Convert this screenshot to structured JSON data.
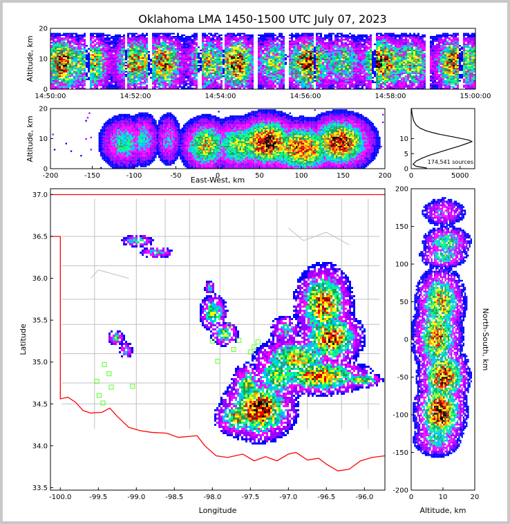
{
  "title": "Oklahoma LMA 1450-1500 UTC July 07, 2023",
  "colors": {
    "density_scale": [
      "#0000ff",
      "#9d00ff",
      "#ff00ff",
      "#00bfff",
      "#00ff80",
      "#1ea050",
      "#ffff00",
      "#ffa000",
      "#ff0000",
      "#a00000",
      "#000000"
    ],
    "state_border": "#ff0000",
    "county_lines": "#c0c0c0",
    "sensor_markers": "#66ff33"
  },
  "chart_data": [
    {
      "id": "time-height",
      "type": "heatmap",
      "ylabel": "Altitude, km",
      "ylim": [
        0,
        20
      ],
      "yticks": [
        0,
        10,
        20
      ],
      "xlim_seconds_after_1450": [
        0,
        600
      ],
      "xticks": [
        "14:50:00",
        "14:52:00",
        "14:54:00",
        "14:56:00",
        "14:58:00",
        "15:00:00"
      ],
      "core_altitude_km": [
        7,
        11
      ],
      "lightning_gaps_seconds_after_1450": [
        52,
        105,
        138,
        210,
        243,
        288,
        332,
        372,
        455,
        532,
        578
      ]
    },
    {
      "id": "ew-altitude",
      "type": "heatmap",
      "xlabel": "East-West, km",
      "ylabel": "Altitude, km",
      "xlim": [
        -200,
        200
      ],
      "ylim": [
        0,
        20
      ],
      "xticks": [
        -200,
        -150,
        -100,
        -50,
        0,
        50,
        100,
        150,
        200
      ],
      "yticks": [
        0,
        10,
        20
      ],
      "clusters": [
        {
          "x_center": -113,
          "x_halfwidth": 15,
          "alt_center": 9,
          "intensity": 0.45
        },
        {
          "x_center": -90,
          "x_halfwidth": 10,
          "alt_center": 10,
          "intensity": 0.4
        },
        {
          "x_center": -60,
          "x_halfwidth": 8,
          "alt_center": 10,
          "intensity": 0.35
        },
        {
          "x_center": -15,
          "x_halfwidth": 15,
          "alt_center": 8,
          "intensity": 0.7
        },
        {
          "x_center": 25,
          "x_halfwidth": 20,
          "alt_center": 8,
          "intensity": 0.6
        },
        {
          "x_center": 58,
          "x_halfwidth": 20,
          "alt_center": 9,
          "intensity": 1.0
        },
        {
          "x_center": 100,
          "x_halfwidth": 25,
          "alt_center": 7,
          "intensity": 0.85
        },
        {
          "x_center": 145,
          "x_halfwidth": 20,
          "alt_center": 9,
          "intensity": 0.95
        }
      ]
    },
    {
      "id": "altitude-histogram",
      "type": "line",
      "xlim": [
        0,
        6500
      ],
      "ylim": [
        0,
        20
      ],
      "xticks": [
        0,
        5000
      ],
      "yticks": [
        0,
        5,
        10
      ],
      "annotation": "174,541 sources",
      "profile": [
        {
          "altitude_km": 0.2,
          "count": 1600
        },
        {
          "altitude_km": 0.8,
          "count": 500
        },
        {
          "altitude_km": 1.5,
          "count": 200
        },
        {
          "altitude_km": 2.5,
          "count": 500
        },
        {
          "altitude_km": 3.5,
          "count": 1100
        },
        {
          "altitude_km": 4.5,
          "count": 1900
        },
        {
          "altitude_km": 5.5,
          "count": 2900
        },
        {
          "altitude_km": 6.5,
          "count": 3900
        },
        {
          "altitude_km": 7.5,
          "count": 4900
        },
        {
          "altitude_km": 8.5,
          "count": 5800
        },
        {
          "altitude_km": 9.0,
          "count": 6200
        },
        {
          "altitude_km": 9.5,
          "count": 5900
        },
        {
          "altitude_km": 10.5,
          "count": 4400
        },
        {
          "altitude_km": 11.5,
          "count": 2800
        },
        {
          "altitude_km": 12.5,
          "count": 1600
        },
        {
          "altitude_km": 13.5,
          "count": 900
        },
        {
          "altitude_km": 14.5,
          "count": 500
        },
        {
          "altitude_km": 16,
          "count": 250
        },
        {
          "altitude_km": 18,
          "count": 100
        },
        {
          "altitude_km": 20,
          "count": 30
        }
      ]
    },
    {
      "id": "plan-view",
      "type": "heatmap",
      "xlabel": "Longitude",
      "ylabel": "Latitude",
      "xlim": [
        -100.13,
        -95.73
      ],
      "ylim": [
        33.47,
        37.07
      ],
      "xticks": [
        "-100.0",
        "-99.5",
        "-99.0",
        "-98.5",
        "-98.0",
        "-97.5",
        "-97.0",
        "-96.5",
        "-96.0"
      ],
      "yticks": [
        "33.5",
        "34.0",
        "34.5",
        "35.0",
        "35.5",
        "36.0",
        "36.5",
        "37.0"
      ],
      "cells": [
        {
          "lon": -99.0,
          "lat": 36.46,
          "rlon": 0.12,
          "rlat": 0.04,
          "intensity": 0.5
        },
        {
          "lon": -98.75,
          "lat": 36.32,
          "rlon": 0.12,
          "rlat": 0.04,
          "intensity": 0.45
        },
        {
          "lon": -99.28,
          "lat": 35.3,
          "rlon": 0.06,
          "rlat": 0.05,
          "intensity": 0.55
        },
        {
          "lon": -99.15,
          "lat": 35.15,
          "rlon": 0.05,
          "rlat": 0.06,
          "intensity": 0.4
        },
        {
          "lon": -98.05,
          "lat": 35.9,
          "rlon": 0.04,
          "rlat": 0.05,
          "intensity": 0.4
        },
        {
          "lon": -98.0,
          "lat": 35.6,
          "rlon": 0.1,
          "rlat": 0.12,
          "intensity": 0.6
        },
        {
          "lon": -97.85,
          "lat": 35.35,
          "rlon": 0.1,
          "rlat": 0.08,
          "intensity": 0.6
        },
        {
          "lon": -96.55,
          "lat": 35.7,
          "rlon": 0.2,
          "rlat": 0.25,
          "intensity": 0.85
        },
        {
          "lon": -96.45,
          "lat": 35.3,
          "rlon": 0.22,
          "rlat": 0.18,
          "intensity": 0.9
        },
        {
          "lon": -96.9,
          "lat": 35.05,
          "rlon": 0.3,
          "rlat": 0.15,
          "intensity": 0.7
        },
        {
          "lon": -96.6,
          "lat": 34.85,
          "rlon": 0.35,
          "rlat": 0.12,
          "intensity": 0.85
        },
        {
          "lon": -96.05,
          "lat": 34.8,
          "rlon": 0.15,
          "rlat": 0.05,
          "intensity": 0.7
        },
        {
          "lon": -97.15,
          "lat": 34.85,
          "rlon": 0.2,
          "rlat": 0.2,
          "intensity": 0.6
        },
        {
          "lon": -97.4,
          "lat": 34.45,
          "rlon": 0.25,
          "rlat": 0.2,
          "intensity": 1.0
        },
        {
          "lon": -97.7,
          "lat": 34.35,
          "rlon": 0.15,
          "rlat": 0.12,
          "intensity": 0.7
        },
        {
          "lon": -97.55,
          "lat": 34.72,
          "rlon": 0.12,
          "rlat": 0.15,
          "intensity": 0.6
        },
        {
          "lon": -97.05,
          "lat": 35.4,
          "rlon": 0.12,
          "rlat": 0.1,
          "intensity": 0.4
        }
      ],
      "sensors": [
        {
          "lon": -99.42,
          "lat": 34.97
        },
        {
          "lon": -99.36,
          "lat": 34.86
        },
        {
          "lon": -99.52,
          "lat": 34.77
        },
        {
          "lon": -99.33,
          "lat": 34.7
        },
        {
          "lon": -99.49,
          "lat": 34.6
        },
        {
          "lon": -99.44,
          "lat": 34.51
        },
        {
          "lon": -99.05,
          "lat": 34.71
        },
        {
          "lon": -97.93,
          "lat": 35.01
        },
        {
          "lon": -98.0,
          "lat": 35.25
        },
        {
          "lon": -97.78,
          "lat": 35.44
        },
        {
          "lon": -97.72,
          "lat": 35.15
        },
        {
          "lon": -97.65,
          "lat": 35.26
        },
        {
          "lon": -97.5,
          "lat": 35.12
        },
        {
          "lon": -97.45,
          "lat": 35.18
        },
        {
          "lon": -97.4,
          "lat": 35.24
        }
      ]
    },
    {
      "id": "ns-altitude",
      "type": "heatmap",
      "xlabel": "Altitude, km",
      "ylabel": "North-South, km",
      "xlim": [
        0,
        20
      ],
      "ylim": [
        -200,
        200
      ],
      "xticks": [
        0,
        10,
        20
      ],
      "yticks": [
        -200,
        -150,
        -100,
        -50,
        0,
        50,
        100,
        150,
        200
      ],
      "clusters": [
        {
          "y_center": 170,
          "y_halfwidth": 10,
          "alt_center": 10,
          "intensity": 0.3
        },
        {
          "y_center": 130,
          "y_halfwidth": 10,
          "alt_center": 11,
          "intensity": 0.55
        },
        {
          "y_center": 112,
          "y_halfwidth": 8,
          "alt_center": 10,
          "intensity": 0.5
        },
        {
          "y_center": 50,
          "y_halfwidth": 22,
          "alt_center": 9,
          "intensity": 0.75
        },
        {
          "y_center": 5,
          "y_halfwidth": 25,
          "alt_center": 8,
          "intensity": 0.8
        },
        {
          "y_center": -48,
          "y_halfwidth": 20,
          "alt_center": 10,
          "intensity": 0.95
        },
        {
          "y_center": -95,
          "y_halfwidth": 22,
          "alt_center": 9,
          "intensity": 1.0
        },
        {
          "y_center": -130,
          "y_halfwidth": 12,
          "alt_center": 8,
          "intensity": 0.5
        }
      ]
    }
  ]
}
